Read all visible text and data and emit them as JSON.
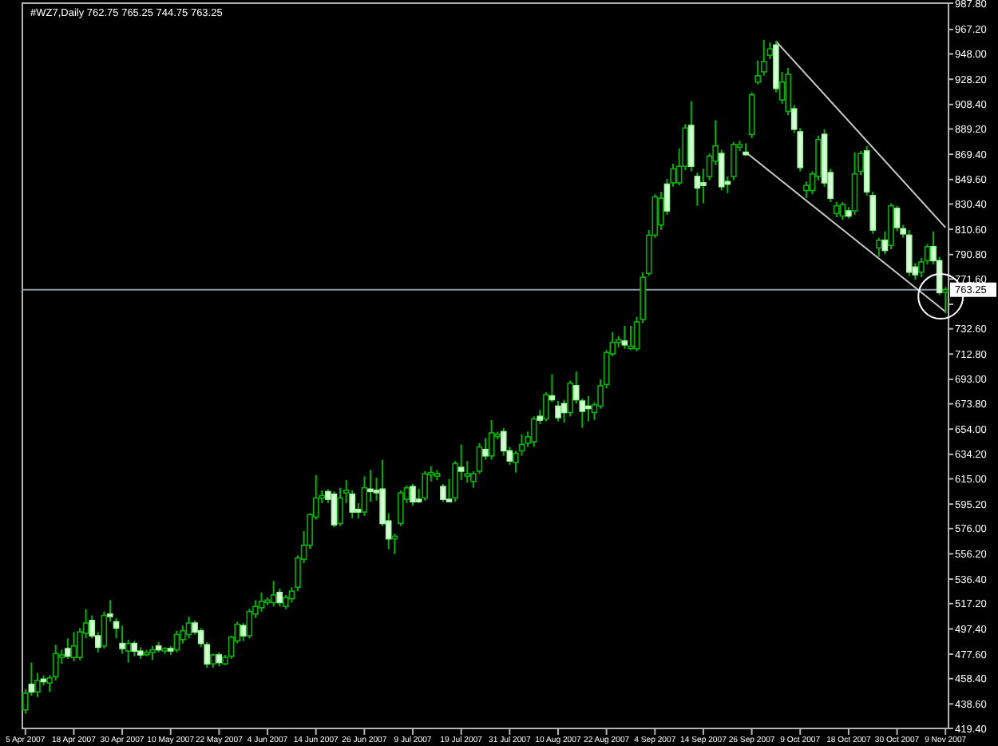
{
  "chart_data": {
    "type": "candlestick",
    "title": "#WZ7,Daily  762.75 765.25 744.75 763.25",
    "categories": [
      "5 Apr 2007",
      null,
      null,
      null,
      null,
      null,
      null,
      null,
      "18 Apr 2007",
      null,
      null,
      null,
      null,
      null,
      null,
      null,
      "30 Apr 2007",
      null,
      null,
      null,
      null,
      null,
      null,
      null,
      "10 May 2007",
      null,
      null,
      null,
      null,
      null,
      null,
      null,
      "22 May 2007",
      null,
      null,
      null,
      null,
      null,
      null,
      null,
      "4 Jun 2007",
      null,
      null,
      null,
      null,
      null,
      null,
      null,
      "14 Jun 2007",
      null,
      null,
      null,
      null,
      null,
      null,
      null,
      "26 Jun 2007",
      null,
      null,
      null,
      null,
      null,
      null,
      null,
      "9 Jul 2007",
      null,
      null,
      null,
      null,
      null,
      null,
      null,
      "19 Jul 2007",
      null,
      null,
      null,
      null,
      null,
      null,
      null,
      "31 Jul 2007",
      null,
      null,
      null,
      null,
      null,
      null,
      null,
      "10 Aug 2007",
      null,
      null,
      null,
      null,
      null,
      null,
      null,
      "22 Aug 2007",
      null,
      null,
      null,
      null,
      null,
      null,
      null,
      "4 Sep 2007",
      null,
      null,
      null,
      null,
      null,
      null,
      null,
      "14 Sep 2007",
      null,
      null,
      null,
      null,
      null,
      null,
      null,
      "26 Sep 2007",
      null,
      null,
      null,
      null,
      null,
      null,
      null,
      "9 Oct 2007",
      null,
      null,
      null,
      null,
      null,
      null,
      null,
      "18 Oct 2007",
      null,
      null,
      null,
      null,
      null,
      null,
      null,
      "30 Oct 2007",
      null,
      null,
      null,
      null,
      null,
      null,
      null,
      "9 Nov 2007"
    ],
    "ohlc": [
      [
        434,
        450,
        431,
        447
      ],
      [
        454,
        471,
        445,
        448
      ],
      [
        448,
        463,
        444,
        457
      ],
      [
        458,
        461,
        453,
        456
      ],
      [
        455,
        461,
        448,
        459
      ],
      [
        460,
        485,
        457,
        478
      ],
      [
        476,
        481,
        470,
        477
      ],
      [
        482,
        490,
        474,
        476
      ],
      [
        475,
        495,
        472,
        484
      ],
      [
        475,
        498,
        473,
        495
      ],
      [
        494,
        513,
        490,
        502
      ],
      [
        504,
        508,
        490,
        492
      ],
      [
        492,
        495,
        479,
        483
      ],
      [
        484,
        511,
        482,
        508
      ],
      [
        509,
        520,
        503,
        508
      ],
      [
        503,
        506,
        490,
        498
      ],
      [
        486,
        500,
        478,
        482
      ],
      [
        480,
        489,
        471,
        486
      ],
      [
        486,
        488,
        476,
        480
      ],
      [
        480,
        483,
        474,
        477
      ],
      [
        478,
        481,
        476,
        479
      ],
      [
        479,
        484,
        473,
        481
      ],
      [
        484,
        487,
        479,
        481
      ],
      [
        481,
        483,
        478,
        482
      ],
      [
        482,
        484,
        477,
        481
      ],
      [
        481,
        496,
        479,
        493
      ],
      [
        489,
        500,
        486,
        496
      ],
      [
        493,
        507,
        490,
        502
      ],
      [
        502,
        504,
        493,
        495
      ],
      [
        496,
        498,
        483,
        486
      ],
      [
        485,
        487,
        467,
        470
      ],
      [
        470,
        478,
        467,
        477
      ],
      [
        477,
        479,
        468,
        471
      ],
      [
        470,
        477,
        469,
        475
      ],
      [
        476,
        492,
        474,
        491
      ],
      [
        488,
        503,
        486,
        501
      ],
      [
        500,
        502,
        488,
        492
      ],
      [
        492,
        513,
        490,
        511
      ],
      [
        509,
        520,
        506,
        515
      ],
      [
        514,
        526,
        511,
        519
      ],
      [
        519,
        522,
        516,
        520
      ],
      [
        518,
        535,
        515,
        524
      ],
      [
        526,
        529,
        515,
        518
      ],
      [
        515,
        524,
        513,
        522
      ],
      [
        521,
        530,
        518,
        527
      ],
      [
        530,
        555,
        527,
        553
      ],
      [
        552,
        574,
        549,
        563
      ],
      [
        563,
        588,
        560,
        587
      ],
      [
        585,
        618,
        583,
        600
      ],
      [
        600,
        606,
        596,
        602
      ],
      [
        605,
        607,
        596,
        599
      ],
      [
        603,
        605,
        577,
        579
      ],
      [
        580,
        608,
        578,
        600
      ],
      [
        604,
        614,
        596,
        606
      ],
      [
        603,
        606,
        584,
        589
      ],
      [
        591,
        596,
        584,
        589
      ],
      [
        589,
        617,
        586,
        608
      ],
      [
        607,
        622,
        597,
        606
      ],
      [
        606,
        616,
        598,
        605
      ],
      [
        607,
        630,
        578,
        580
      ],
      [
        582,
        588,
        560,
        568
      ],
      [
        568,
        572,
        556,
        570
      ],
      [
        580,
        606,
        578,
        604
      ],
      [
        599,
        610,
        596,
        608
      ],
      [
        609,
        611,
        594,
        597
      ],
      [
        599,
        607,
        596,
        598
      ],
      [
        600,
        621,
        598,
        619
      ],
      [
        619,
        625,
        613,
        620
      ],
      [
        618,
        622,
        614,
        619
      ],
      [
        609,
        611,
        597,
        599
      ],
      [
        599,
        615,
        597,
        598
      ],
      [
        600,
        629,
        597,
        627
      ],
      [
        624,
        642,
        614,
        621
      ],
      [
        619,
        629,
        612,
        619
      ],
      [
        613,
        621,
        608,
        619
      ],
      [
        621,
        643,
        619,
        640
      ],
      [
        638,
        647,
        630,
        633
      ],
      [
        633,
        661,
        630,
        651
      ],
      [
        649,
        652,
        646,
        650
      ],
      [
        652,
        655,
        633,
        637
      ],
      [
        637,
        640,
        626,
        629
      ],
      [
        628,
        637,
        620,
        635
      ],
      [
        637,
        650,
        633,
        642
      ],
      [
        643,
        652,
        640,
        648
      ],
      [
        644,
        664,
        640,
        662
      ],
      [
        664,
        669,
        658,
        661
      ],
      [
        662,
        683,
        660,
        681
      ],
      [
        680,
        697,
        675,
        677
      ],
      [
        672,
        676,
        660,
        663
      ],
      [
        674,
        677,
        659,
        667
      ],
      [
        667,
        692,
        664,
        690
      ],
      [
        688,
        699,
        674,
        677
      ],
      [
        676,
        678,
        655,
        668
      ],
      [
        672,
        680,
        660,
        671
      ],
      [
        667,
        675,
        661,
        673
      ],
      [
        672,
        693,
        670,
        688
      ],
      [
        689,
        716,
        686,
        714
      ],
      [
        713,
        730,
        711,
        722
      ],
      [
        722,
        727,
        718,
        724
      ],
      [
        723,
        735,
        717,
        720
      ],
      [
        719,
        735,
        716,
        719
      ],
      [
        717,
        742,
        715,
        738
      ],
      [
        740,
        777,
        737,
        773
      ],
      [
        776,
        810,
        774,
        806
      ],
      [
        806,
        838,
        804,
        836
      ],
      [
        814,
        840,
        810,
        835
      ],
      [
        846,
        850,
        822,
        825
      ],
      [
        847,
        862,
        844,
        858
      ],
      [
        847,
        874,
        845,
        860
      ],
      [
        860,
        893,
        857,
        890
      ],
      [
        892,
        911,
        856,
        860
      ],
      [
        852,
        855,
        829,
        843
      ],
      [
        847,
        858,
        831,
        845
      ],
      [
        852,
        870,
        849,
        868
      ],
      [
        864,
        896,
        861,
        876
      ],
      [
        870,
        873,
        841,
        844
      ],
      [
        848,
        852,
        839,
        846
      ],
      [
        852,
        879,
        849,
        877
      ],
      [
        875,
        880,
        872,
        877
      ],
      [
        871,
        878,
        868,
        870
      ],
      [
        885,
        918,
        882,
        916
      ],
      [
        926,
        943,
        924,
        931
      ],
      [
        934,
        959,
        931,
        942
      ],
      [
        947,
        957,
        944,
        952
      ],
      [
        955,
        958,
        918,
        921
      ],
      [
        912,
        934,
        909,
        926
      ],
      [
        903,
        937,
        900,
        932
      ],
      [
        905,
        908,
        886,
        889
      ],
      [
        887,
        890,
        856,
        859
      ],
      [
        841,
        848,
        835,
        845
      ],
      [
        841,
        856,
        838,
        854
      ],
      [
        852,
        884,
        849,
        881
      ],
      [
        885,
        889,
        844,
        847
      ],
      [
        855,
        858,
        832,
        835
      ],
      [
        823,
        832,
        820,
        829
      ],
      [
        821,
        832,
        818,
        830
      ],
      [
        825,
        828,
        819,
        821
      ],
      [
        825,
        871,
        822,
        854
      ],
      [
        856,
        872,
        853,
        870
      ],
      [
        872,
        876,
        837,
        840
      ],
      [
        837,
        840,
        807,
        810
      ],
      [
        796,
        804,
        789,
        802
      ],
      [
        802,
        809,
        791,
        794
      ],
      [
        798,
        831,
        795,
        829
      ],
      [
        827,
        829,
        809,
        812
      ],
      [
        811,
        814,
        804,
        807
      ],
      [
        806,
        810,
        774,
        777
      ],
      [
        781,
        784,
        771,
        775
      ],
      [
        777,
        788,
        773,
        785
      ],
      [
        786,
        799,
        783,
        797
      ],
      [
        797,
        809,
        783,
        786
      ],
      [
        786,
        789,
        759,
        761
      ],
      [
        762.75,
        765.25,
        744.75,
        763.25
      ]
    ],
    "series": [
      {
        "type": "line",
        "values": [
          null,
          null,
          null,
          null,
          null,
          null,
          null,
          null,
          null,
          null,
          null,
          null,
          null,
          null,
          null,
          null,
          null,
          null,
          null,
          null,
          null,
          null,
          null,
          null,
          null,
          null,
          null,
          null,
          null,
          null,
          null,
          null,
          null,
          null,
          null,
          null,
          null,
          null,
          null,
          null,
          null,
          null,
          null,
          null,
          null,
          null,
          null,
          null,
          null,
          null,
          null,
          null,
          null,
          null,
          null,
          null,
          null,
          null,
          null,
          null,
          null,
          null,
          null,
          null,
          null,
          null,
          null,
          null,
          null,
          null,
          null,
          null,
          null,
          null,
          null,
          null,
          null,
          null,
          null,
          null,
          null,
          null,
          null,
          null,
          null,
          null,
          null,
          null,
          null,
          null,
          null,
          null,
          null,
          null,
          null,
          null,
          null,
          null,
          null,
          null,
          null,
          null,
          null,
          null,
          null,
          null,
          null,
          null,
          null,
          null,
          null,
          null,
          null,
          null,
          null,
          null,
          null,
          null,
          null,
          null,
          null,
          null,
          null,
          null,
          958,
          null,
          null,
          null,
          null,
          null,
          null,
          null,
          null,
          null,
          null,
          null,
          null,
          null,
          null,
          null,
          null,
          null,
          null,
          null,
          null,
          null,
          null,
          null,
          null,
          null,
          null,
          null,
          812
        ],
        "color": "#c8c8c8"
      },
      {
        "type": "line",
        "values": [
          null,
          null,
          null,
          null,
          null,
          null,
          null,
          null,
          null,
          null,
          null,
          null,
          null,
          null,
          null,
          null,
          null,
          null,
          null,
          null,
          null,
          null,
          null,
          null,
          null,
          null,
          null,
          null,
          null,
          null,
          null,
          null,
          null,
          null,
          null,
          null,
          null,
          null,
          null,
          null,
          null,
          null,
          null,
          null,
          null,
          null,
          null,
          null,
          null,
          null,
          null,
          null,
          null,
          null,
          null,
          null,
          null,
          null,
          null,
          null,
          null,
          null,
          null,
          null,
          null,
          null,
          null,
          null,
          null,
          null,
          null,
          null,
          null,
          null,
          null,
          null,
          null,
          null,
          null,
          null,
          null,
          null,
          null,
          null,
          null,
          null,
          null,
          null,
          null,
          null,
          null,
          null,
          null,
          null,
          null,
          null,
          null,
          null,
          null,
          null,
          null,
          null,
          null,
          null,
          null,
          null,
          null,
          null,
          null,
          null,
          null,
          null,
          null,
          null,
          null,
          null,
          null,
          null,
          null,
          871,
          null,
          null,
          null,
          null,
          null,
          null,
          null,
          null,
          null,
          null,
          null,
          null,
          null,
          null,
          null,
          null,
          null,
          null,
          null,
          null,
          null,
          null,
          null,
          null,
          null,
          null,
          null,
          null,
          null,
          null,
          null,
          null,
          746
        ],
        "color": "#c8c8c8"
      }
    ],
    "ylim": [
      419.4,
      987.8
    ],
    "yticks": [
      {
        "value": 987.8,
        "label": "987.80"
      },
      {
        "value": 967.2,
        "label": "967.20"
      },
      {
        "value": 948,
        "label": "948.00"
      },
      {
        "value": 928.2,
        "label": "928.20"
      },
      {
        "value": 908.4,
        "label": "908.40"
      },
      {
        "value": 889.2,
        "label": "889.20"
      },
      {
        "value": 869.4,
        "label": "869.40"
      },
      {
        "value": 849.6,
        "label": "849.60"
      },
      {
        "value": 830.4,
        "label": "830.40"
      },
      {
        "value": 810.6,
        "label": "810.60"
      },
      {
        "value": 790.8,
        "label": "790.80"
      },
      {
        "value": 771.6,
        "label": "771.60"
      },
      {
        "value": 751.8,
        "label": null
      },
      {
        "value": 732.6,
        "label": "732.60"
      },
      {
        "value": 712.8,
        "label": "712.80"
      },
      {
        "value": 693,
        "label": "693.00"
      },
      {
        "value": 673.8,
        "label": "673.80"
      },
      {
        "value": 654,
        "label": "654.00"
      },
      {
        "value": 634.2,
        "label": "634.20"
      },
      {
        "value": 615,
        "label": "615.00"
      },
      {
        "value": 595.2,
        "label": "595.20"
      },
      {
        "value": 576,
        "label": "576.00"
      },
      {
        "value": 556.2,
        "label": "556.20"
      },
      {
        "value": 536.4,
        "label": "536.40"
      },
      {
        "value": 517.2,
        "label": "517.20"
      },
      {
        "value": 497.4,
        "label": "497.40"
      },
      {
        "value": 477.6,
        "label": "477.60"
      },
      {
        "value": 458.4,
        "label": "458.40"
      },
      {
        "value": 438.6,
        "label": "438.60"
      },
      {
        "value": 419.4,
        "label": "419.40"
      }
    ],
    "ref_lines": [
      {
        "axis": "y",
        "value": 763.25,
        "label": "763.25",
        "color": "#8c9aa0"
      }
    ]
  }
}
